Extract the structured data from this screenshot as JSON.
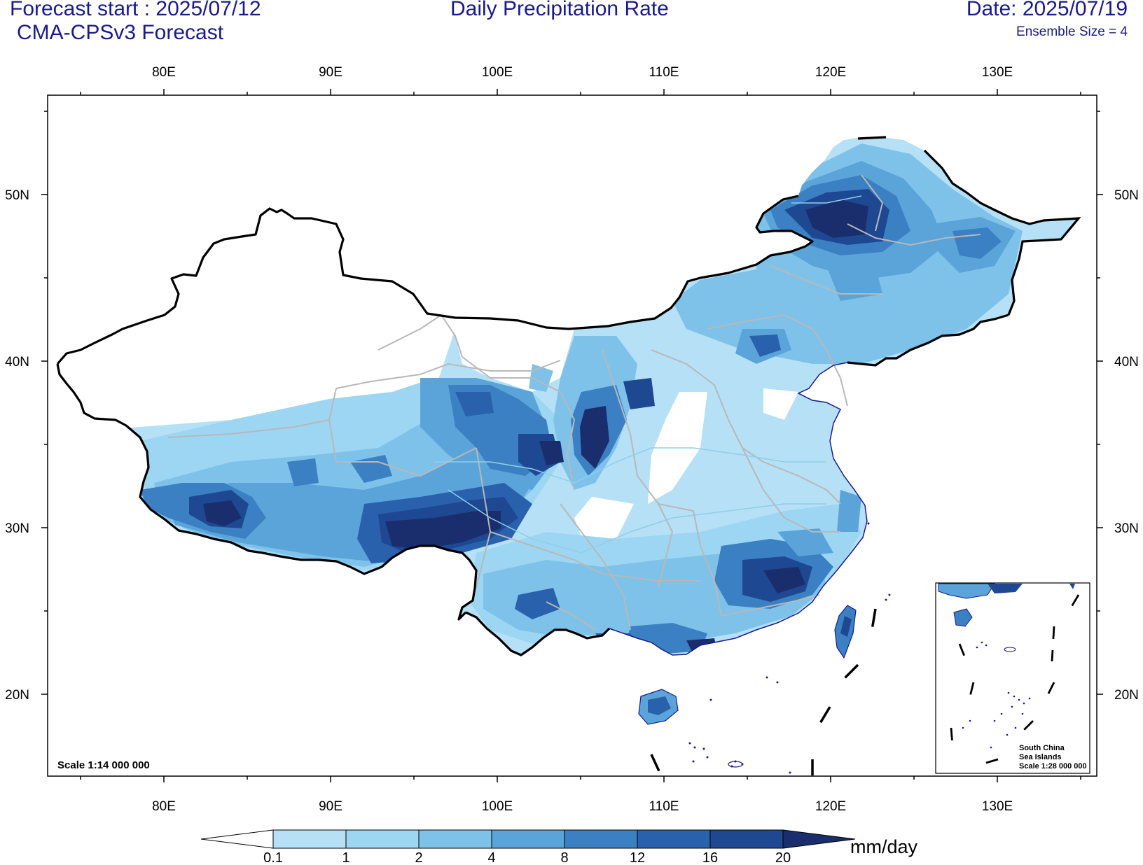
{
  "header": {
    "forecast_start": "Forecast start : 2025/07/12",
    "model": "CMA-CPSv3 Forecast",
    "title": "Daily Precipitation Rate",
    "date": "Date: 2025/07/19",
    "ensemble": "Ensemble Size = 4"
  },
  "axes": {
    "lon_labels": [
      "80E",
      "90E",
      "100E",
      "110E",
      "120E",
      "130E"
    ],
    "lat_labels": [
      "50N",
      "40N",
      "30N",
      "20N"
    ]
  },
  "map": {
    "scale_note": "Scale 1:14 000 000",
    "inset_title_1": "South China",
    "inset_title_2": "Sea Islands",
    "inset_scale": "Scale 1:28 000 000"
  },
  "colorbar": {
    "unit": "mm/day",
    "levels": [
      "0.1",
      "1",
      "2",
      "4",
      "8",
      "12",
      "16",
      "20"
    ],
    "colors": [
      "#ffffff",
      "#b6e0f6",
      "#9dd6f2",
      "#7ec2ea",
      "#5ba4d9",
      "#3c80c4",
      "#2961ad",
      "#1e4892",
      "#1a2e6e"
    ]
  }
}
